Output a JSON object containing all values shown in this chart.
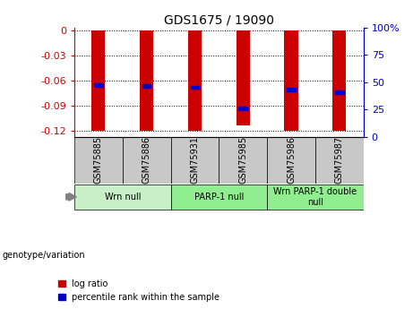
{
  "title": "GDS1675 / 19090",
  "samples": [
    "GSM75885",
    "GSM75886",
    "GSM75931",
    "GSM75985",
    "GSM75986",
    "GSM75987"
  ],
  "log_ratios": [
    -0.12,
    -0.12,
    -0.12,
    -0.113,
    -0.12,
    -0.12
  ],
  "percentile_ranks_val": [
    -0.065,
    -0.066,
    -0.068,
    -0.093,
    -0.071,
    -0.074
  ],
  "ylim_left": [
    -0.127,
    0.003
  ],
  "yticks_left": [
    0,
    -0.03,
    -0.06,
    -0.09,
    -0.12
  ],
  "yticks_right_pct": [
    100,
    75,
    50,
    25,
    0
  ],
  "bar_color": "#cc0000",
  "dot_color": "#0000cc",
  "bar_width": 0.28,
  "background_color": "#ffffff",
  "grid_color": "#000000",
  "left_axis_color": "#cc0000",
  "right_axis_color": "#0000cc",
  "sample_bg_color": "#c8c8c8",
  "groups": [
    {
      "label": "Wrn null",
      "start": 0,
      "end": 1,
      "color": "#c8f0c8"
    },
    {
      "label": "PARP-1 null",
      "start": 2,
      "end": 3,
      "color": "#90ee90"
    },
    {
      "label": "Wrn PARP-1 double\nnull",
      "start": 4,
      "end": 5,
      "color": "#90ee90"
    }
  ]
}
